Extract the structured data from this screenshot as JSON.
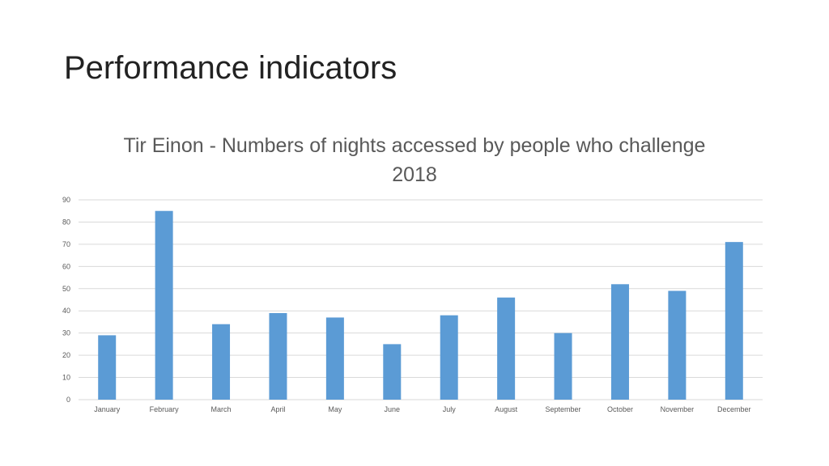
{
  "slide": {
    "title": "Performance indicators"
  },
  "chart_data": {
    "type": "bar",
    "title": "Tir Einon - Numbers of nights accessed by people who challenge 2018",
    "xlabel": "",
    "ylabel": "",
    "categories": [
      "January",
      "February",
      "March",
      "April",
      "May",
      "June",
      "July",
      "August",
      "September",
      "October",
      "November",
      "December"
    ],
    "values": [
      29,
      85,
      34,
      39,
      37,
      25,
      38,
      46,
      30,
      52,
      49,
      71
    ],
    "ylim": [
      0,
      90
    ],
    "yticks": [
      0,
      10,
      20,
      30,
      40,
      50,
      60,
      70,
      80,
      90
    ],
    "grid": true,
    "legend": "none",
    "bar_color": "#5b9bd5",
    "grid_color": "#d9d9d9"
  }
}
